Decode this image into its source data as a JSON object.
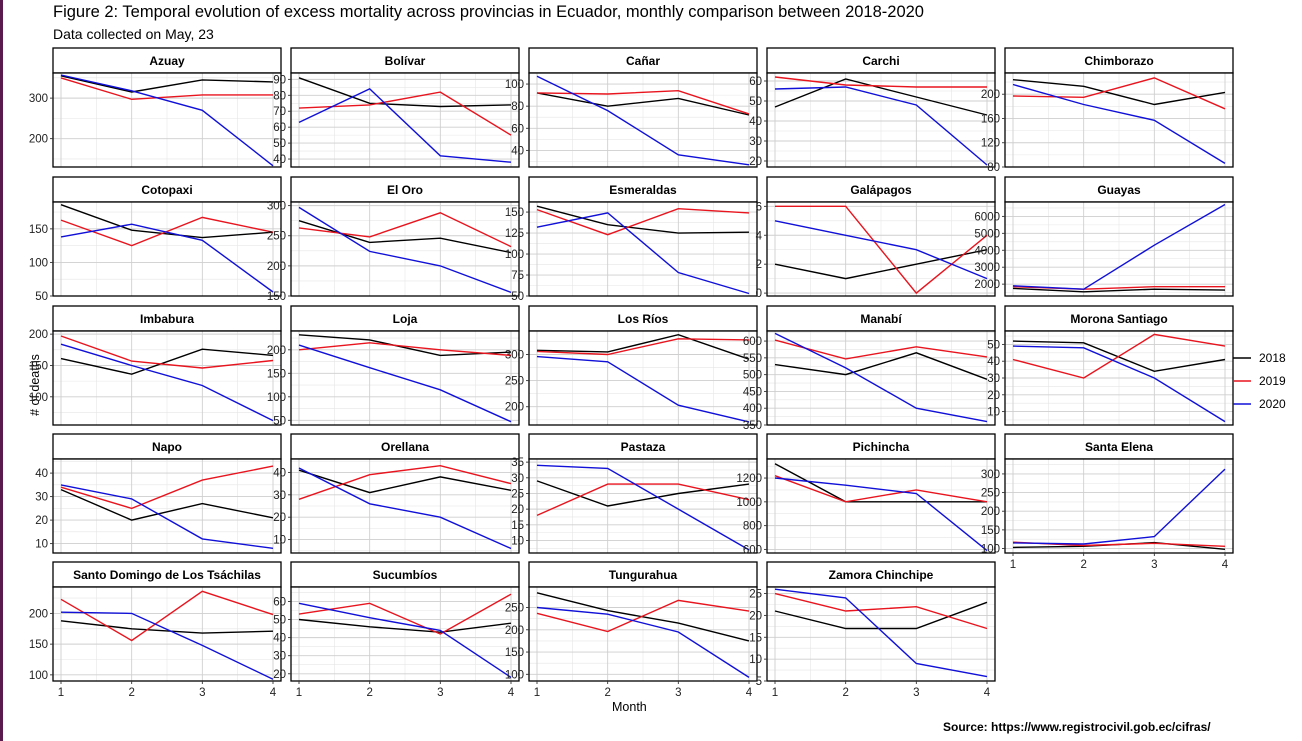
{
  "figure": {
    "title": "Figure 2: Temporal evolution of excess mortality across provincias in Ecuador, monthly comparison between 2018-2020",
    "subtitle": "Data collected on May, 23",
    "ylabel": "# of deaths",
    "xlabel": "Month",
    "source": "Source: https://www.registrocivil.gob.ec/cifras/"
  },
  "chart_data": {
    "type": "line",
    "layout": "facet-grid-5-columns",
    "x": [
      1,
      2,
      3,
      4
    ],
    "x_ticks": [
      "1",
      "2",
      "3",
      "4"
    ],
    "grid": true,
    "legend_position": "right",
    "series_names": [
      "2018",
      "2019",
      "2020"
    ],
    "series_colors": {
      "2018": "#000000",
      "2019": "#e8141e",
      "2020": "#1010d8"
    },
    "panels": [
      {
        "name": "Azuay",
        "ylim": [
          130,
          362
        ],
        "yticks": [
          200,
          300
        ],
        "series": {
          "2018": [
            355,
            315,
            345,
            340
          ],
          "2019": [
            350,
            297,
            308,
            308
          ],
          "2020": [
            357,
            318,
            270,
            133
          ]
        }
      },
      {
        "name": "Bolívar",
        "ylim": [
          35,
          94
        ],
        "yticks": [
          40,
          50,
          60,
          70,
          80,
          90
        ],
        "series": {
          "2018": [
            91,
            75,
            73,
            74
          ],
          "2019": [
            72,
            74,
            82,
            55
          ],
          "2020": [
            63,
            84,
            42,
            38
          ]
        }
      },
      {
        "name": "Cañar",
        "ylim": [
          25,
          110
        ],
        "yticks": [
          40,
          60,
          80,
          100
        ],
        "series": {
          "2018": [
            92,
            80,
            87,
            72
          ],
          "2019": [
            92,
            91,
            94,
            73
          ],
          "2020": [
            107,
            76,
            36,
            27
          ]
        }
      },
      {
        "name": "Carchi",
        "ylim": [
          17,
          64
        ],
        "yticks": [
          20,
          30,
          40,
          50,
          60
        ],
        "series": {
          "2018": [
            47,
            61,
            52,
            43
          ],
          "2019": [
            62,
            58,
            57,
            57
          ],
          "2020": [
            56,
            57,
            48,
            18
          ]
        }
      },
      {
        "name": "Chimborazo",
        "ylim": [
          80,
          235
        ],
        "yticks": [
          80,
          120,
          160,
          200
        ],
        "series": {
          "2018": [
            224,
            213,
            183,
            203
          ],
          "2019": [
            197,
            195,
            227,
            176
          ],
          "2020": [
            216,
            183,
            157,
            86
          ]
        }
      },
      {
        "name": "Cotopaxi",
        "ylim": [
          50,
          190
        ],
        "yticks": [
          50,
          100,
          150
        ],
        "series": {
          "2018": [
            186,
            148,
            137,
            145
          ],
          "2019": [
            163,
            125,
            167,
            145
          ],
          "2020": [
            138,
            157,
            133,
            56
          ]
        }
      },
      {
        "name": "El Oro",
        "ylim": [
          150,
          306
        ],
        "yticks": [
          150,
          200,
          250,
          300
        ],
        "series": {
          "2018": [
            275,
            239,
            246,
            222
          ],
          "2019": [
            263,
            248,
            288,
            232
          ],
          "2020": [
            297,
            224,
            200,
            156
          ]
        }
      },
      {
        "name": "Esmeraldas",
        "ylim": [
          50,
          162
        ],
        "yticks": [
          50,
          75,
          100,
          125,
          150
        ],
        "series": {
          "2018": [
            157,
            135,
            125,
            126
          ],
          "2019": [
            153,
            123,
            154,
            149
          ],
          "2020": [
            132,
            149,
            78,
            53
          ]
        }
      },
      {
        "name": "Galápagos",
        "ylim": [
          -0.2,
          6.3
        ],
        "yticks": [
          0,
          2,
          4,
          6
        ],
        "series": {
          "2018": [
            2,
            1,
            2,
            3
          ],
          "2019": [
            6,
            6,
            0,
            4
          ],
          "2020": [
            5,
            4,
            3,
            1
          ]
        }
      },
      {
        "name": "Guayas",
        "ylim": [
          1300,
          6850
        ],
        "yticks": [
          2000,
          3000,
          4000,
          5000,
          6000
        ],
        "series": {
          "2018": [
            1750,
            1550,
            1700,
            1650
          ],
          "2019": [
            1850,
            1700,
            1850,
            1850
          ],
          "2020": [
            1900,
            1700,
            4300,
            6700
          ]
        }
      },
      {
        "name": "Imbabura",
        "ylim": [
          55,
          205
        ],
        "yticks": [
          100,
          150,
          200
        ],
        "series": {
          "2018": [
            161,
            136,
            176,
            166
          ],
          "2019": [
            197,
            157,
            146,
            158
          ],
          "2020": [
            184,
            150,
            118,
            62
          ]
        }
      },
      {
        "name": "Loja",
        "ylim": [
          40,
          240
        ],
        "yticks": [
          50,
          100,
          150,
          200
        ],
        "series": {
          "2018": [
            232,
            221,
            188,
            195
          ],
          "2019": [
            200,
            215,
            200,
            188
          ],
          "2020": [
            210,
            162,
            115,
            47
          ]
        }
      },
      {
        "name": "Los Ríos",
        "ylim": [
          165,
          345
        ],
        "yticks": [
          200,
          250,
          300
        ],
        "series": {
          "2018": [
            308,
            305,
            338,
            291
          ],
          "2019": [
            306,
            300,
            330,
            328
          ],
          "2020": [
            296,
            286,
            203,
            171
          ]
        }
      },
      {
        "name": "Manabí",
        "ylim": [
          350,
          630
        ],
        "yticks": [
          350,
          400,
          450,
          500,
          550,
          600
        ],
        "series": {
          "2018": [
            530,
            500,
            565,
            486
          ],
          "2019": [
            603,
            547,
            583,
            553
          ],
          "2020": [
            623,
            520,
            400,
            360
          ]
        }
      },
      {
        "name": "Morona Santiago",
        "ylim": [
          2,
          58
        ],
        "yticks": [
          10,
          20,
          30,
          40,
          50
        ],
        "series": {
          "2018": [
            52,
            51,
            34,
            41
          ],
          "2019": [
            41,
            30,
            56,
            49
          ],
          "2020": [
            49,
            48,
            30,
            4
          ]
        }
      },
      {
        "name": "Napo",
        "ylim": [
          6,
          46
        ],
        "yticks": [
          10,
          20,
          30,
          40
        ],
        "series": {
          "2018": [
            33,
            20,
            27,
            21
          ],
          "2019": [
            34,
            25,
            37,
            43
          ],
          "2020": [
            35,
            29,
            12,
            8
          ]
        }
      },
      {
        "name": "Orellana",
        "ylim": [
          4,
          46
        ],
        "yticks": [
          10,
          20,
          30,
          40
        ],
        "series": {
          "2018": [
            41,
            31,
            38,
            32
          ],
          "2019": [
            28,
            39,
            43,
            35
          ],
          "2020": [
            42,
            26,
            20,
            6
          ]
        }
      },
      {
        "name": "Pastaza",
        "ylim": [
          6,
          36
        ],
        "yticks": [
          10,
          15,
          20,
          25,
          30,
          35
        ],
        "series": {
          "2018": [
            29,
            21,
            25,
            28
          ],
          "2019": [
            18,
            28,
            28,
            23
          ],
          "2020": [
            34,
            33,
            20,
            7
          ]
        }
      },
      {
        "name": "Pichincha",
        "ylim": [
          570,
          1360
        ],
        "yticks": [
          600,
          800,
          1000,
          1200
        ],
        "series": {
          "2018": [
            1320,
            1000,
            1000,
            1000
          ],
          "2019": [
            1220,
            1000,
            1100,
            1000
          ],
          "2020": [
            1200,
            1140,
            1070,
            590
          ]
        }
      },
      {
        "name": "Santa Elena",
        "ylim": [
          88,
          340
        ],
        "yticks": [
          100,
          150,
          200,
          250,
          300
        ],
        "series": {
          "2018": [
            103,
            106,
            116,
            98
          ],
          "2019": [
            117,
            108,
            114,
            106
          ],
          "2020": [
            115,
            112,
            132,
            313
          ]
        }
      },
      {
        "name": "Santo Domingo de Los Tsáchilas",
        "ylim": [
          90,
          243
        ],
        "yticks": [
          100,
          150,
          200
        ],
        "series": {
          "2018": [
            188,
            175,
            168,
            171
          ],
          "2019": [
            223,
            156,
            236,
            198
          ],
          "2020": [
            202,
            200,
            148,
            93
          ]
        }
      },
      {
        "name": "Sucumbíos",
        "ylim": [
          16,
          68
        ],
        "yticks": [
          20,
          30,
          40,
          50,
          60
        ],
        "series": {
          "2018": [
            50,
            46,
            43,
            48
          ],
          "2019": [
            53,
            59,
            42,
            64
          ],
          "2020": [
            59,
            51,
            44,
            18
          ]
        }
      },
      {
        "name": "Tungurahua",
        "ylim": [
          85,
          296
        ],
        "yticks": [
          100,
          150,
          200,
          250
        ],
        "series": {
          "2018": [
            283,
            243,
            215,
            175
          ],
          "2019": [
            237,
            196,
            266,
            242
          ],
          "2020": [
            250,
            235,
            195,
            93
          ]
        }
      },
      {
        "name": "Zamora Chinchipe",
        "ylim": [
          5,
          26.5
        ],
        "yticks": [
          5,
          10,
          15,
          20,
          25
        ],
        "series": {
          "2018": [
            21,
            17,
            17,
            23
          ],
          "2019": [
            25,
            21,
            22,
            17
          ],
          "2020": [
            26,
            24,
            9,
            6
          ]
        }
      }
    ]
  }
}
